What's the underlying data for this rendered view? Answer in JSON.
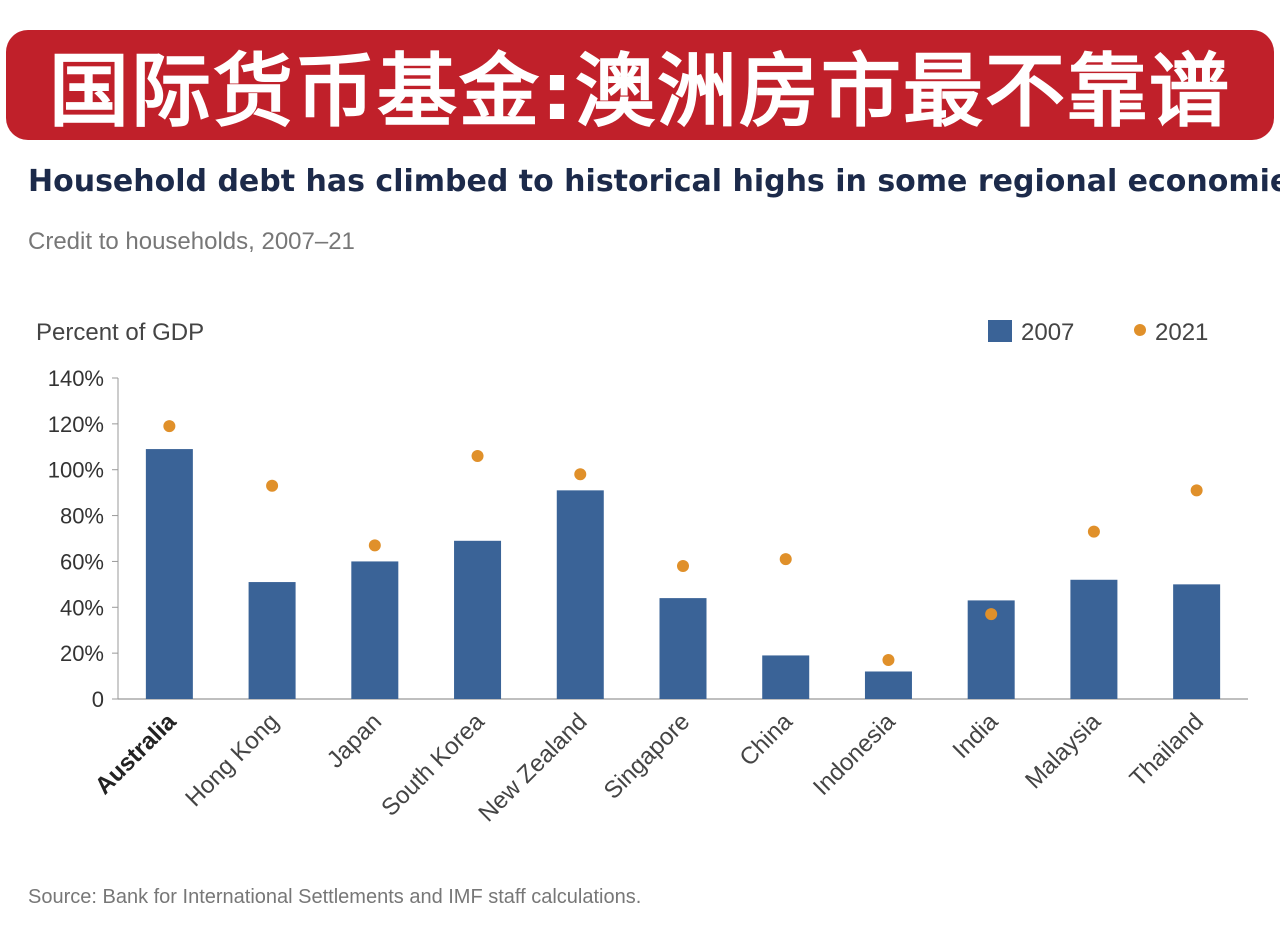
{
  "banner": {
    "text": "国际货币基金:澳洲房市最不靠谱"
  },
  "colors": {
    "banner_bg": "#c0202a",
    "bar_2007": "#3a6397",
    "dot_2021": "#e0902a"
  },
  "chart_data": {
    "type": "bar",
    "title": "Household debt has climbed to historical highs in some regional economies",
    "subtitle": "Credit to households, 2007–21",
    "ylabel": "Percent of GDP",
    "ylim": [
      0,
      140
    ],
    "yticks": [
      {
        "value": 0,
        "label": "0"
      },
      {
        "value": 20,
        "label": "20%"
      },
      {
        "value": 40,
        "label": "40%"
      },
      {
        "value": 60,
        "label": "60%"
      },
      {
        "value": 80,
        "label": "80%"
      },
      {
        "value": 100,
        "label": "100%"
      },
      {
        "value": 120,
        "label": "120%"
      },
      {
        "value": 140,
        "label": "140%"
      }
    ],
    "categories": [
      "Australia",
      "Hong Kong",
      "Japan",
      "South Korea",
      "New Zealand",
      "Singapore",
      "China",
      "Indonesia",
      "India",
      "Malaysia",
      "Thailand"
    ],
    "highlight_category": "Australia",
    "series": [
      {
        "name": "2007",
        "kind": "bar",
        "values": [
          109,
          51,
          60,
          69,
          91,
          44,
          19,
          12,
          43,
          52,
          50
        ]
      },
      {
        "name": "2021",
        "kind": "dot",
        "values": [
          119,
          93,
          67,
          106,
          98,
          58,
          61,
          17,
          37,
          73,
          91
        ]
      }
    ],
    "legend_position": "top-right",
    "grid": false,
    "source": "Source: Bank for International Settlements and IMF staff calculations."
  }
}
